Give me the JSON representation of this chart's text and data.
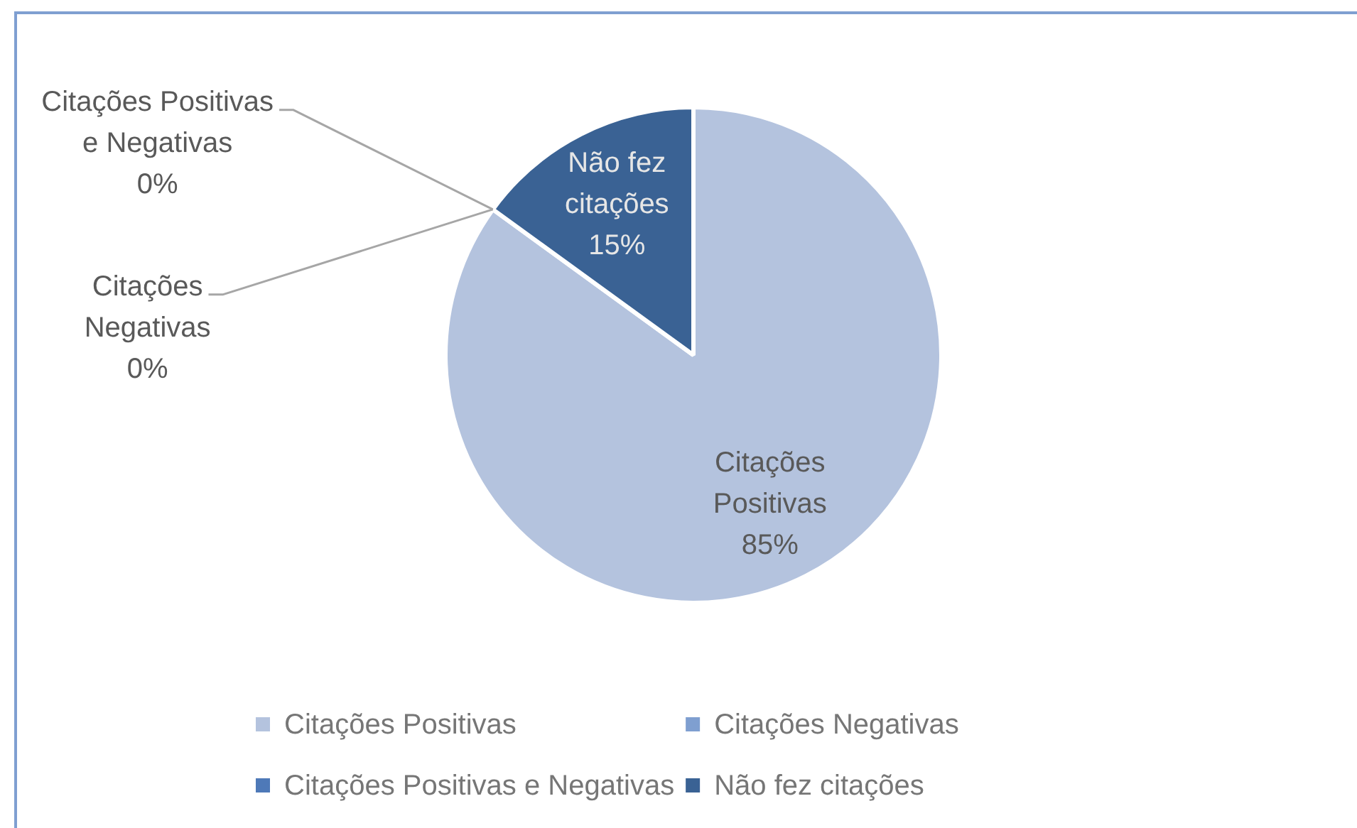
{
  "chart_data": {
    "type": "pie",
    "categories": [
      "Citações Positivas",
      "Citações Negativas",
      "Citações Positivas e Negativas",
      "Não fez citações"
    ],
    "values": [
      85,
      0,
      0,
      15
    ],
    "colors": [
      "#b4c3de",
      "#7f9fd0",
      "#4e79b8",
      "#3a6294"
    ],
    "value_labels": [
      "85%",
      "0%",
      "0%",
      "15%"
    ],
    "legend": "bottom"
  }
}
